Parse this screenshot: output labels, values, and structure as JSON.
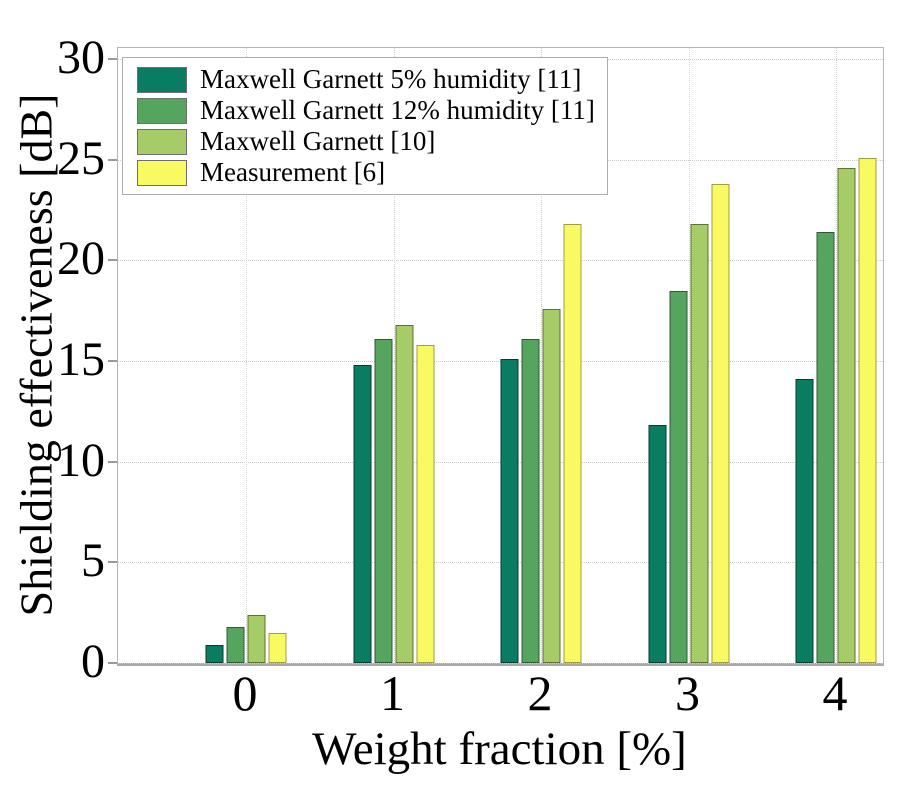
{
  "chart_data": {
    "type": "bar",
    "title": "",
    "xlabel": "Weight fraction [%]",
    "ylabel": "Shielding effectiveness [dB]",
    "categories": [
      "0",
      "1",
      "2",
      "3",
      "4"
    ],
    "series": [
      {
        "name": "Maxwell Garnett 5% humidity [11]",
        "color": "#0a7c61",
        "edge_color": "#0a3a30",
        "values": [
          0.9,
          14.8,
          15.1,
          11.8,
          14.1
        ]
      },
      {
        "name": "Maxwell Garnett 12% humidity [11]",
        "color": "#55a55f",
        "edge_color": "#30573a",
        "values": [
          1.8,
          16.1,
          16.1,
          18.5,
          21.4
        ]
      },
      {
        "name": "Maxwell Garnett [10]",
        "color": "#a6cc67",
        "edge_color": "#5e7031",
        "values": [
          2.4,
          16.8,
          17.6,
          21.8,
          24.6
        ]
      },
      {
        "name": "Measurement [6]",
        "color": "#f9f962",
        "edge_color": "#9d9d45",
        "values": [
          1.5,
          15.8,
          21.8,
          23.8,
          25.1
        ]
      }
    ],
    "ylim": [
      0,
      30.55
    ],
    "yticks": [
      "0",
      "5",
      "10",
      "15",
      "20",
      "25",
      "30"
    ],
    "grid": "on",
    "legend_position": "upper-left",
    "axis_color": "#b5b5b5",
    "gridline_color": "#c9c9c9"
  }
}
